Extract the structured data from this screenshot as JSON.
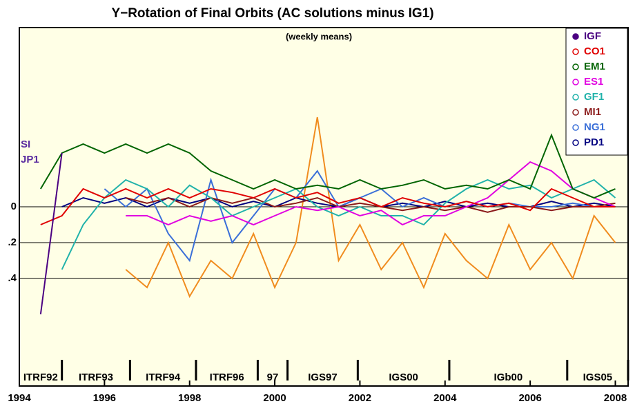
{
  "chart_data": {
    "type": "line",
    "title": "Y−Rotation of Final Orbits (AC solutions minus IG1)",
    "subtitle": "(weekly means)",
    "x": [
      1994.5,
      1995,
      1995.5,
      1996,
      1996.5,
      1997,
      1997.5,
      1998,
      1998.5,
      1999,
      1999.5,
      2000,
      2000.5,
      2001,
      2001.5,
      2002,
      2002.5,
      2003,
      2003.5,
      2004,
      2004.5,
      2005,
      2005.5,
      2006,
      2006.5,
      2007,
      2007.5,
      2008
    ],
    "xlim": [
      1994,
      2008.3
    ],
    "xticks": [
      1994,
      1996,
      1998,
      2000,
      2002,
      2004,
      2006,
      2008
    ],
    "ylim": [
      -1,
      1
    ],
    "yticks": [
      {
        "value": 0,
        "label": "0"
      },
      {
        "value": -0.2,
        "label": ".2"
      },
      {
        "value": -0.4,
        "label": ".4"
      }
    ],
    "grid": true,
    "legend": "upper right",
    "series": [
      {
        "name": "IGF",
        "color": "#4b0082",
        "values": [
          -0.6,
          0.3,
          null,
          null,
          null,
          null,
          null,
          null,
          null,
          null,
          null,
          null,
          null,
          null,
          null,
          null,
          null,
          null,
          null,
          null,
          null,
          null,
          null,
          null,
          null,
          null,
          null,
          null
        ]
      },
      {
        "name": "CO1",
        "color": "#e00000",
        "values": [
          -0.1,
          -0.05,
          0.1,
          0.05,
          0.1,
          0.05,
          0.1,
          0.05,
          0.1,
          0.08,
          0.05,
          0.1,
          0.05,
          0.08,
          0.02,
          0.05,
          0.0,
          0.05,
          0.02,
          0.0,
          0.03,
          0.0,
          0.02,
          -0.02,
          0.1,
          0.05,
          0.0,
          0.0
        ]
      },
      {
        "name": "EM1",
        "color": "#006400",
        "values": [
          0.1,
          0.3,
          0.35,
          0.3,
          0.35,
          0.3,
          0.35,
          0.3,
          0.2,
          0.15,
          0.1,
          0.15,
          0.1,
          0.12,
          0.1,
          0.15,
          0.1,
          0.12,
          0.15,
          0.1,
          0.12,
          0.1,
          0.15,
          0.1,
          0.4,
          0.1,
          0.05,
          0.1
        ]
      },
      {
        "name": "ES1",
        "color": "#e000e0",
        "values": [
          null,
          null,
          null,
          null,
          -0.05,
          -0.05,
          -0.1,
          -0.05,
          -0.08,
          -0.05,
          -0.1,
          -0.05,
          0.0,
          -0.02,
          0.0,
          -0.05,
          -0.02,
          -0.1,
          -0.05,
          -0.05,
          0.0,
          0.05,
          0.15,
          0.25,
          0.2,
          0.1,
          0.05,
          0.0
        ]
      },
      {
        "name": "GF1",
        "color": "#20b2aa",
        "values": [
          null,
          -0.35,
          -0.1,
          0.05,
          0.15,
          0.1,
          0.0,
          0.12,
          0.05,
          -0.05,
          0.0,
          0.05,
          0.1,
          0.0,
          -0.05,
          0.0,
          -0.05,
          -0.05,
          -0.1,
          0.02,
          0.1,
          0.15,
          0.1,
          0.12,
          0.05,
          0.1,
          0.15,
          0.05
        ]
      },
      {
        "name": "MI1",
        "color": "#8b1a1a",
        "values": [
          null,
          null,
          null,
          null,
          0.05,
          0.02,
          0.05,
          0.0,
          0.05,
          0.02,
          0.05,
          0.0,
          0.02,
          0.05,
          0.0,
          0.02,
          0.0,
          -0.02,
          0.0,
          -0.02,
          0.0,
          -0.03,
          0.0,
          0.0,
          -0.02,
          0.0,
          0.0,
          0.02
        ]
      },
      {
        "name": "NG1",
        "color": "#3a6fd8",
        "values": [
          null,
          null,
          null,
          0.1,
          0.0,
          0.1,
          -0.15,
          -0.3,
          0.15,
          -0.2,
          -0.05,
          0.1,
          0.05,
          0.2,
          0.0,
          0.05,
          0.1,
          0.0,
          0.05,
          0.0,
          0.03,
          0.0,
          0.02,
          0.0,
          0.0,
          0.02,
          0.0,
          0.0
        ]
      },
      {
        "name": "PD1",
        "color": "#000080",
        "values": [
          null,
          0.0,
          0.05,
          0.02,
          0.05,
          0.0,
          0.05,
          0.02,
          0.05,
          0.0,
          0.03,
          0.0,
          0.05,
          0.02,
          0.0,
          0.05,
          0.0,
          0.02,
          0.0,
          0.03,
          0.0,
          0.02,
          0.0,
          0.0,
          0.03,
          0.0,
          0.02,
          0.0
        ]
      },
      {
        "color": "#f08c1e",
        "values": [
          null,
          null,
          null,
          null,
          -0.35,
          -0.45,
          -0.2,
          -0.5,
          -0.3,
          -0.4,
          -0.15,
          -0.45,
          -0.2,
          0.5,
          -0.3,
          -0.1,
          -0.35,
          -0.2,
          -0.45,
          -0.15,
          -0.3,
          -0.4,
          -0.1,
          -0.35,
          -0.2,
          -0.4,
          -0.05,
          -0.2
        ]
      }
    ],
    "annotations": [
      "SI",
      "JP1"
    ],
    "frames": [
      {
        "label": "ITRF92",
        "start": 1994,
        "end": 1995.0
      },
      {
        "label": "ITRF93",
        "start": 1995.0,
        "end": 1996.6
      },
      {
        "label": "ITRF94",
        "start": 1996.6,
        "end": 1998.15
      },
      {
        "label": "ITRF96",
        "start": 1998.15,
        "end": 1999.6
      },
      {
        "label": "97",
        "start": 1999.6,
        "end": 2000.3
      },
      {
        "label": "IGS97",
        "start": 2000.3,
        "end": 2001.95
      },
      {
        "label": "IGS00",
        "start": 2001.95,
        "end": 2004.1
      },
      {
        "label": "IGb00",
        "start": 2004.1,
        "end": 2006.87
      },
      {
        "label": "IGS05",
        "start": 2006.87,
        "end": 2008.3
      }
    ]
  }
}
